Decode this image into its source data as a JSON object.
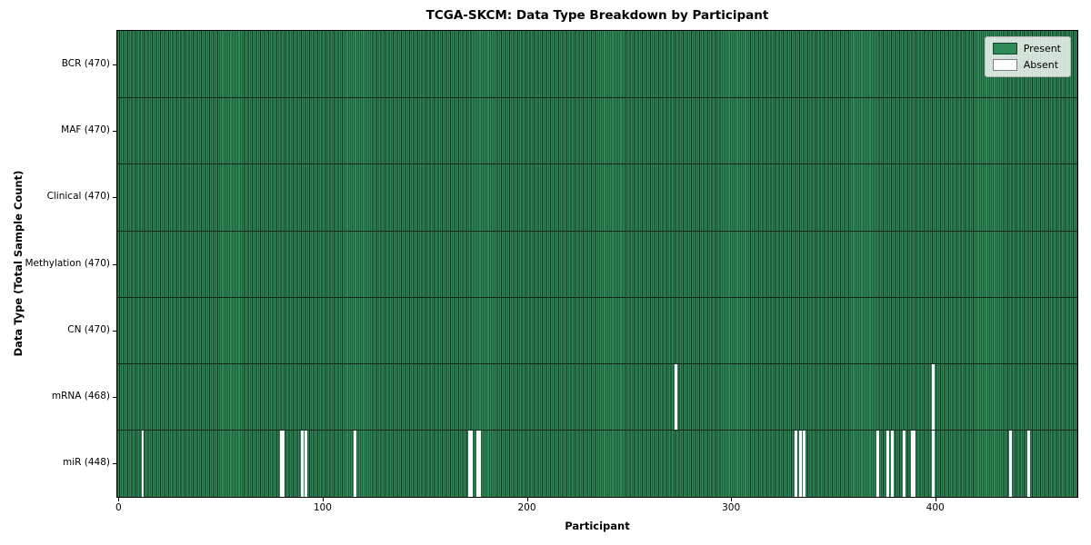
{
  "chart_data": {
    "type": "heatmap",
    "title": "TCGA-SKCM: Data Type Breakdown by Participant",
    "xlabel": "Participant",
    "ylabel": "Data Type (Total Sample Count)",
    "n_participants": 470,
    "x_ticks": [
      0,
      100,
      200,
      300,
      400
    ],
    "x_range": [
      -0.5,
      469.5
    ],
    "legend_position": "upper right",
    "rows": [
      {
        "data_type": "BCR",
        "label": "BCR (470)",
        "present_count": 470,
        "absent_participants": []
      },
      {
        "data_type": "MAF",
        "label": "MAF (470)",
        "present_count": 470,
        "absent_participants": []
      },
      {
        "data_type": "Clinical",
        "label": "Clinical (470)",
        "present_count": 470,
        "absent_participants": []
      },
      {
        "data_type": "Methylation",
        "label": "Methylation (470)",
        "present_count": 470,
        "absent_participants": []
      },
      {
        "data_type": "CN",
        "label": "CN (470)",
        "present_count": 470,
        "absent_participants": []
      },
      {
        "data_type": "mRNA",
        "label": "mRNA (468)",
        "present_count": 468,
        "absent_participants": [
          273,
          399
        ]
      },
      {
        "data_type": "miR",
        "label": "miR (448)",
        "present_count": 448,
        "absent_participants": [
          12,
          80,
          81,
          90,
          92,
          116,
          172,
          173,
          176,
          177,
          332,
          334,
          336,
          372,
          377,
          379,
          385,
          389,
          390,
          399,
          437,
          446
        ]
      }
    ],
    "legend": [
      {
        "label": "Present",
        "color": "#2e8b57"
      },
      {
        "label": "Absent",
        "color": "#ffffff"
      }
    ],
    "colors": {
      "present": "#2e8b57",
      "absent": "#ffffff",
      "bar_edge": "#11301f",
      "row_separator": "#10281a",
      "plot_border": "#000000",
      "legend_bg": "#e3e9e3",
      "legend_border": "#b5b5b5"
    }
  }
}
